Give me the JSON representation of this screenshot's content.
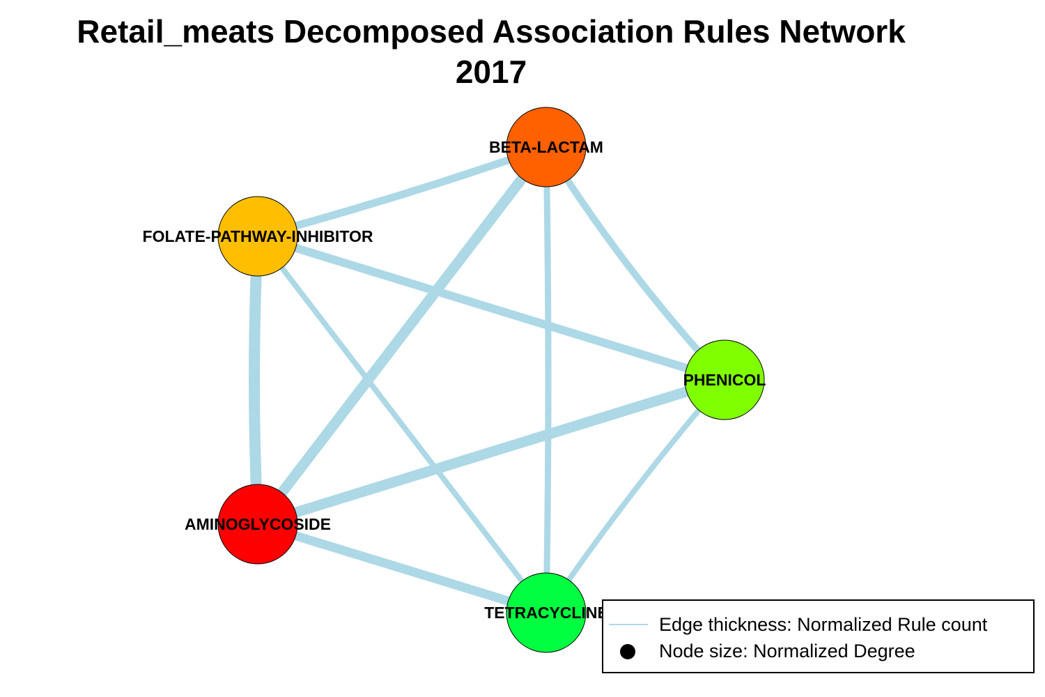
{
  "title": {
    "line1": "Retail_meats Decomposed Association Rules Network",
    "line2": "2017"
  },
  "network": {
    "edge_color": "#add8e6",
    "nodes": [
      {
        "id": "beta",
        "label": "BETA-LACTAM",
        "color": "#ff6000"
      },
      {
        "id": "folate",
        "label": "FOLATE-PATHWAY-INHIBITOR",
        "color": "#ffbf00"
      },
      {
        "id": "phenicol",
        "label": "PHENICOL",
        "color": "#80ff00"
      },
      {
        "id": "amino",
        "label": "AMINOGLYCOSIDE",
        "color": "#ff0000"
      },
      {
        "id": "tetra",
        "label": "TETRACYCLINE",
        "color": "#00ff40"
      }
    ],
    "edges": [
      {
        "source": "folate",
        "target": "beta"
      },
      {
        "source": "amino",
        "target": "beta"
      },
      {
        "source": "tetra",
        "target": "beta"
      },
      {
        "source": "phenicol",
        "target": "beta"
      },
      {
        "source": "folate",
        "target": "phenicol"
      },
      {
        "source": "folate",
        "target": "amino"
      },
      {
        "source": "folate",
        "target": "tetra"
      },
      {
        "source": "amino",
        "target": "phenicol"
      },
      {
        "source": "amino",
        "target": "tetra"
      },
      {
        "source": "phenicol",
        "target": "tetra"
      }
    ]
  },
  "legend": {
    "edge_label": "Edge thickness: Normalized Rule count",
    "node_label": "Node size: Normalized Degree"
  }
}
